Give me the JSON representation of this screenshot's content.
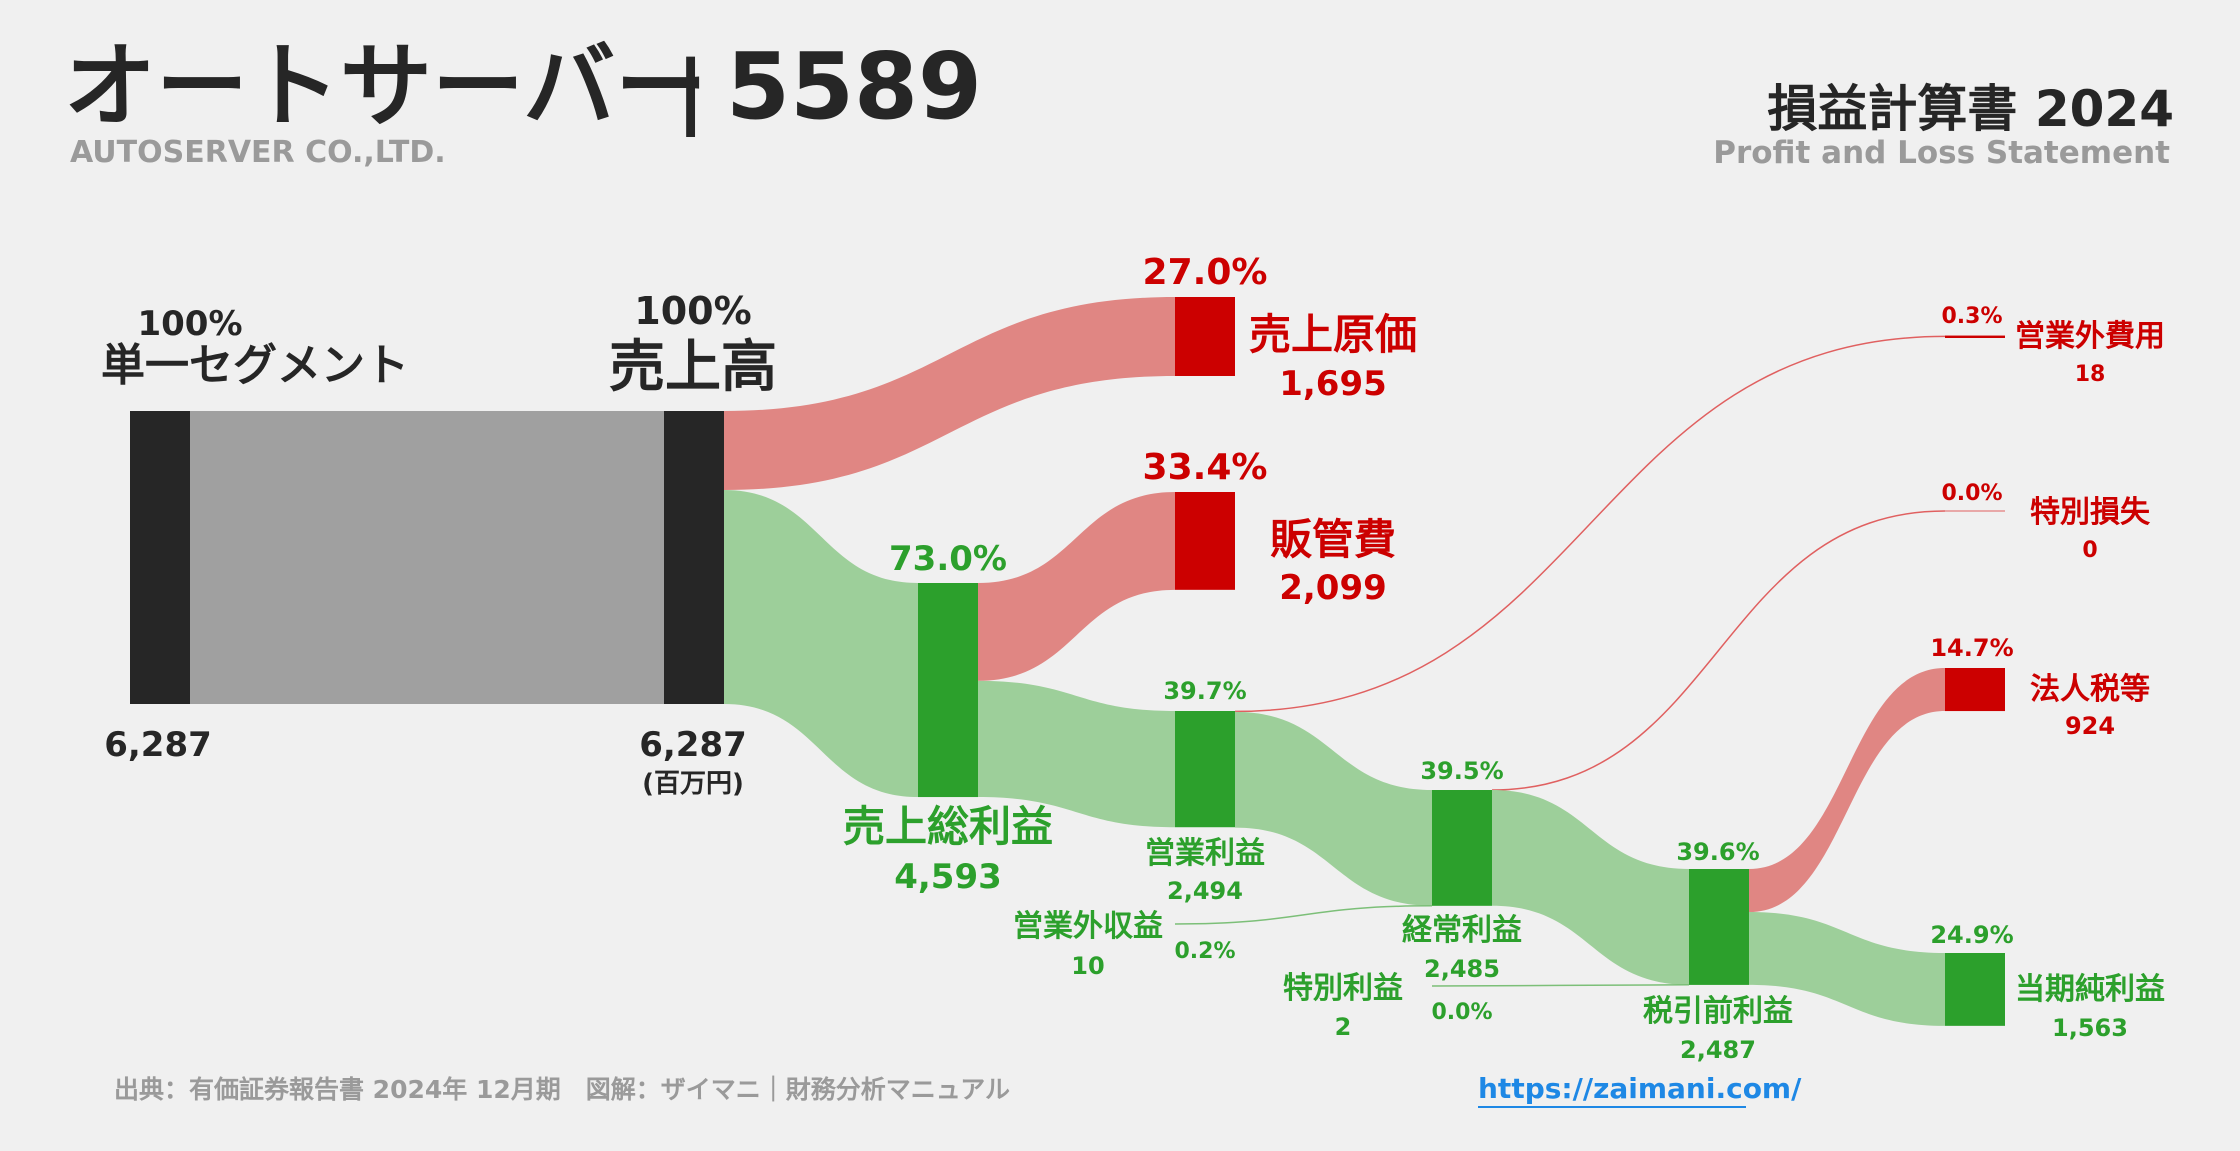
{
  "header": {
    "company_name": "オートサーバー",
    "separator": "|",
    "ticker": "5589",
    "company_name_en": "AUTOSERVER CO.,LTD.",
    "statement_title": "損益計算書 2024",
    "statement_subtitle": "Profit and Loss Statement"
  },
  "footer": {
    "source": "出典：有価証券報告書 2024年 12月期　図解：ザイマニ｜財務分析マニュアル",
    "url": "https://zaimani.com/"
  },
  "colors": {
    "background": "#f0f0f0",
    "dark_bar": "#262626",
    "segment_flow": "#a0a0a0",
    "cost": "#cc0000",
    "cost_flow": "#e08683",
    "profit": "#2ca02c",
    "profit_flow": "#9dcf9a",
    "muted_text": "#9a9a9a",
    "link": "#1e88e5"
  },
  "chart_data": {
    "type": "sankey",
    "unit": "(百万円)",
    "nodes": [
      {
        "id": "segment",
        "name": "単一セグメント",
        "value": 6287,
        "value_label": "6,287",
        "pct": "100%",
        "kind": "revenue"
      },
      {
        "id": "revenue",
        "name": "売上高",
        "value": 6287,
        "value_label": "6,287",
        "pct": "100%",
        "kind": "revenue"
      },
      {
        "id": "cogs",
        "name": "売上原価",
        "value": 1695,
        "value_label": "1,695",
        "pct": "27.0%",
        "kind": "cost"
      },
      {
        "id": "gross",
        "name": "売上総利益",
        "value": 4593,
        "value_label": "4,593",
        "pct": "73.0%",
        "kind": "profit"
      },
      {
        "id": "sga",
        "name": "販管費",
        "value": 2099,
        "value_label": "2,099",
        "pct": "33.4%",
        "kind": "cost"
      },
      {
        "id": "op",
        "name": "営業利益",
        "value": 2494,
        "value_label": "2,494",
        "pct": "39.7%",
        "kind": "profit"
      },
      {
        "id": "nonop_inc",
        "name": "営業外収益",
        "value": 10,
        "value_label": "10",
        "pct": "0.2%",
        "kind": "profit"
      },
      {
        "id": "nonop_exp",
        "name": "営業外費用",
        "value": 18,
        "value_label": "18",
        "pct": "0.3%",
        "kind": "cost"
      },
      {
        "id": "ordinary",
        "name": "経常利益",
        "value": 2485,
        "value_label": "2,485",
        "pct": "39.5%",
        "kind": "profit"
      },
      {
        "id": "ext_gain",
        "name": "特別利益",
        "value": 2,
        "value_label": "2",
        "pct": "0.0%",
        "kind": "profit"
      },
      {
        "id": "ext_loss",
        "name": "特別損失",
        "value": 0,
        "value_label": "0",
        "pct": "0.0%",
        "kind": "cost"
      },
      {
        "id": "pretax",
        "name": "税引前利益",
        "value": 2487,
        "value_label": "2,487",
        "pct": "39.6%",
        "kind": "profit"
      },
      {
        "id": "tax",
        "name": "法人税等",
        "value": 924,
        "value_label": "924",
        "pct": "14.7%",
        "kind": "cost"
      },
      {
        "id": "net",
        "name": "当期純利益",
        "value": 1563,
        "value_label": "1,563",
        "pct": "24.9%",
        "kind": "profit"
      }
    ],
    "links": [
      {
        "source": "segment",
        "target": "revenue",
        "value": 6287
      },
      {
        "source": "revenue",
        "target": "cogs",
        "value": 1695
      },
      {
        "source": "revenue",
        "target": "gross",
        "value": 4593
      },
      {
        "source": "gross",
        "target": "sga",
        "value": 2099
      },
      {
        "source": "gross",
        "target": "op",
        "value": 2494
      },
      {
        "source": "op",
        "target": "nonop_exp",
        "value": 18
      },
      {
        "source": "op",
        "target": "ordinary",
        "value": 2485
      },
      {
        "source": "nonop_inc",
        "target": "ordinary",
        "value": 10
      },
      {
        "source": "ordinary",
        "target": "ext_loss",
        "value": 0
      },
      {
        "source": "ordinary",
        "target": "pretax",
        "value": 2485
      },
      {
        "source": "ext_gain",
        "target": "pretax",
        "value": 2
      },
      {
        "source": "pretax",
        "target": "tax",
        "value": 924
      },
      {
        "source": "pretax",
        "target": "net",
        "value": 1563
      }
    ]
  }
}
